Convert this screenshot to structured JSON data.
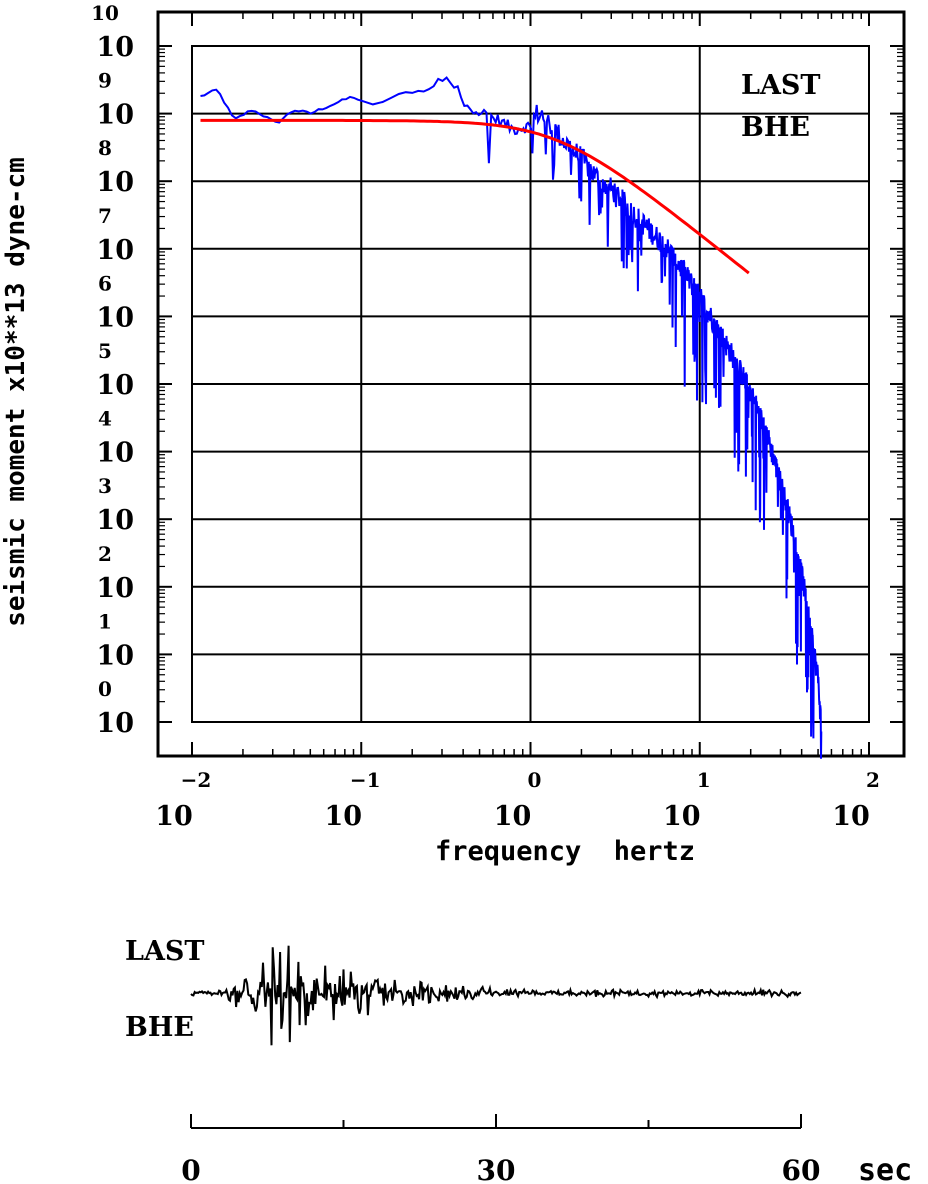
{
  "chart_data": [
    {
      "type": "line",
      "scale": "log-log",
      "ylabel": "seismic moment x10**13 dyne-cm",
      "xlabel": "frequency  hertz",
      "station_label": "LAST",
      "component_label": "BHE",
      "x_tick_labels": [
        {
          "base": "10",
          "exp": "−2",
          "value": 0.01
        },
        {
          "base": "10",
          "exp": "−1",
          "value": 0.1
        },
        {
          "base": "10",
          "exp": "0",
          "value": 1
        },
        {
          "base": "10",
          "exp": "1",
          "value": 10
        },
        {
          "base": "10",
          "exp": "2",
          "value": 100
        }
      ],
      "y_tick_labels": [
        {
          "base": "10",
          "exp": "10",
          "value": 10000000000.0
        },
        {
          "base": "10",
          "exp": "9",
          "value": 1000000000.0
        },
        {
          "base": "10",
          "exp": "8",
          "value": 100000000.0
        },
        {
          "base": "10",
          "exp": "7",
          "value": 10000000.0
        },
        {
          "base": "10",
          "exp": "6",
          "value": 1000000.0
        },
        {
          "base": "10",
          "exp": "5",
          "value": 100000.0
        },
        {
          "base": "10",
          "exp": "4",
          "value": 10000.0
        },
        {
          "base": "10",
          "exp": "3",
          "value": 1000.0
        },
        {
          "base": "10",
          "exp": "2",
          "value": 100
        },
        {
          "base": "10",
          "exp": "1",
          "value": 10
        },
        {
          "base": "10",
          "exp": "0",
          "value": 1
        }
      ],
      "xlim_log10": [
        -2.2,
        2.2
      ],
      "ylim_log10": [
        -0.5,
        10.5
      ],
      "grid": true,
      "series": [
        {
          "color": "#0000ff",
          "style": "spectrum",
          "anchors_log10": [
            [
              -1.95,
              9.25
            ],
            [
              -1.85,
              9.35
            ],
            [
              -1.75,
              8.9
            ],
            [
              -1.65,
              9.05
            ],
            [
              -1.6,
              9.0
            ],
            [
              -1.5,
              8.85
            ],
            [
              -1.4,
              9.05
            ],
            [
              -1.3,
              9.0
            ],
            [
              -1.2,
              9.1
            ],
            [
              -1.05,
              9.25
            ],
            [
              -0.95,
              9.1
            ],
            [
              -0.85,
              9.2
            ],
            [
              -0.75,
              9.3
            ],
            [
              -0.6,
              9.35
            ],
            [
              -0.5,
              9.55
            ],
            [
              -0.4,
              9.2
            ],
            [
              -0.3,
              9.0
            ],
            [
              -0.2,
              8.9
            ],
            [
              -0.1,
              8.75
            ],
            [
              0.0,
              8.8
            ],
            [
              0.05,
              9.0
            ],
            [
              0.1,
              8.85
            ],
            [
              0.2,
              8.55
            ],
            [
              0.3,
              8.3
            ],
            [
              0.4,
              8.0
            ],
            [
              0.5,
              7.8
            ],
            [
              0.6,
              7.5
            ],
            [
              0.7,
              7.25
            ],
            [
              0.8,
              7.0
            ],
            [
              0.9,
              6.65
            ],
            [
              1.0,
              6.25
            ],
            [
              1.1,
              5.8
            ],
            [
              1.2,
              5.35
            ],
            [
              1.3,
              4.85
            ],
            [
              1.4,
              4.2
            ],
            [
              1.5,
              3.3
            ],
            [
              1.55,
              2.8
            ],
            [
              1.6,
              2.2
            ],
            [
              1.65,
              1.4
            ],
            [
              1.7,
              0.6
            ],
            [
              1.72,
              -0.2
            ]
          ]
        },
        {
          "color": "#ff0000",
          "style": "model",
          "omega0_log10": 8.9,
          "corner_freq_hz": 1.45,
          "f_range_log10": [
            -1.95,
            1.3
          ],
          "points_log10": [
            [
              -1.95,
              8.9
            ],
            [
              -1.5,
              8.9
            ],
            [
              -1.0,
              8.9
            ],
            [
              -0.5,
              8.89
            ],
            [
              -0.25,
              8.86
            ],
            [
              0.0,
              8.76
            ],
            [
              0.25,
              8.52
            ],
            [
              0.5,
              8.1
            ],
            [
              0.75,
              7.6
            ],
            [
              1.0,
              6.9
            ],
            [
              1.15,
              6.4
            ],
            [
              1.3,
              5.85
            ]
          ]
        }
      ]
    },
    {
      "type": "line",
      "station_label": "LAST",
      "component_label": "BHE",
      "x_unit": "sec",
      "x_ticks": [
        0,
        30,
        60
      ],
      "x_minor_step": 15,
      "xlim": [
        0,
        60
      ],
      "series": [
        {
          "color": "#000000",
          "style": "seismogram",
          "duration_s": 60,
          "signal_end_s": 60,
          "onset_s": 3.0,
          "peak_s": 8.5,
          "peak_amplitude": 1.0,
          "decay_s": 9.0
        }
      ]
    }
  ]
}
